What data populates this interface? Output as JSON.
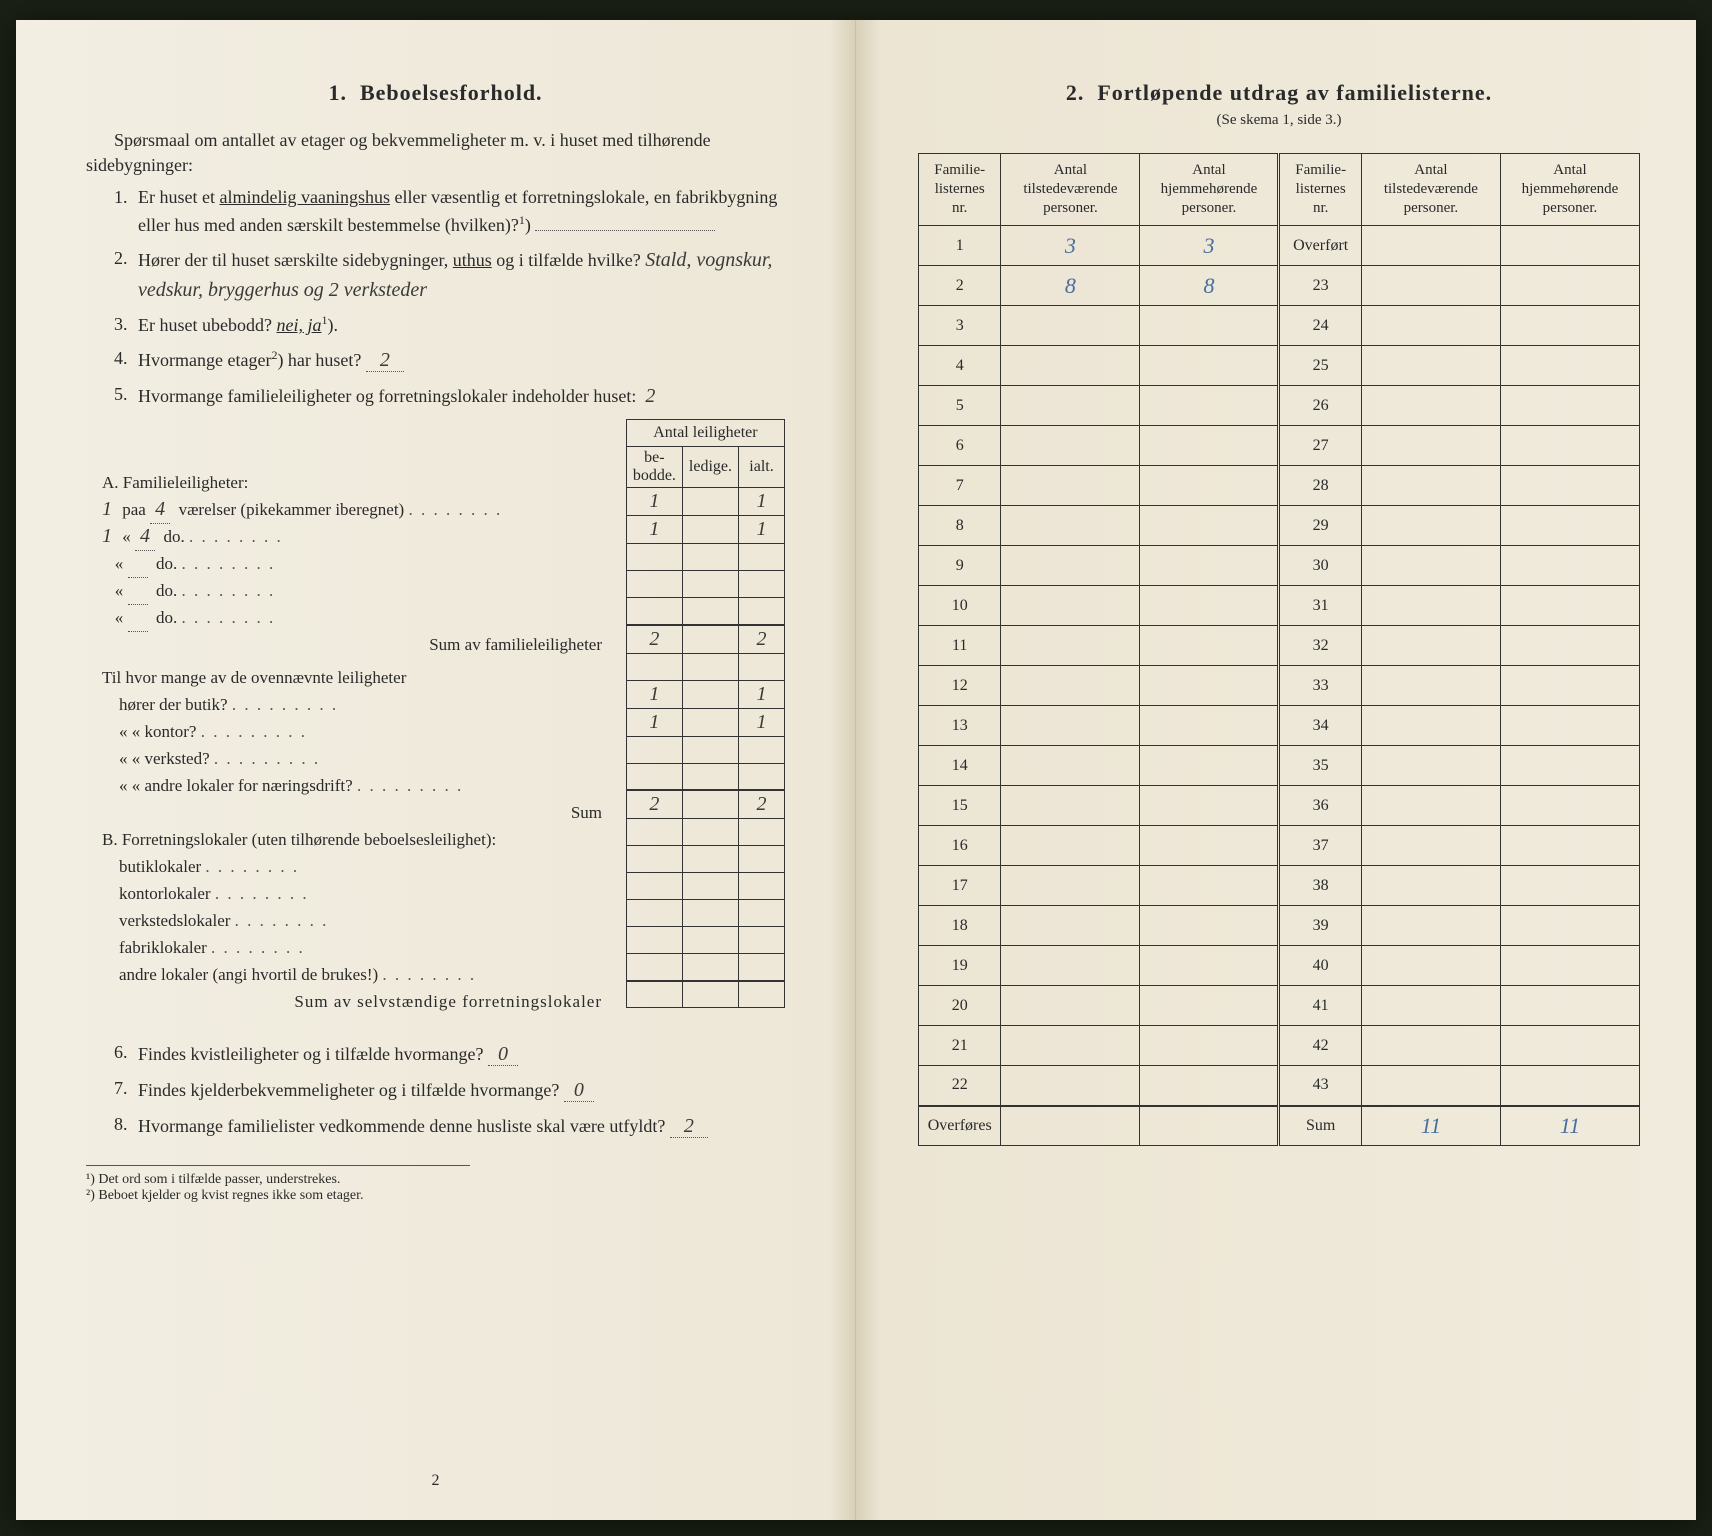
{
  "colors": {
    "page_bg": "#f0ece0",
    "text": "#2a2a2a",
    "rule": "#333333",
    "handwriting": "#3a3a38",
    "blue_pencil": "#4a6f9e",
    "outer_bg": "#1a2015"
  },
  "left": {
    "section_num": "1.",
    "section_title": "Beboelsesforhold.",
    "intro": "Spørsmaal om antallet av etager og bekvemmeligheter m. v. i huset med tilhørende sidebygninger:",
    "q1": {
      "num": "1.",
      "text_a": "Er huset et ",
      "underlined": "almindelig vaaningshus",
      "text_b": " eller væsentlig et forretningslokale, en fabrikbygning eller hus med anden særskilt bestemmelse (hvilken)?",
      "sup": "1"
    },
    "q2": {
      "num": "2.",
      "text_a": "Hører der til huset særskilte sidebygninger, ",
      "underlined": "uthus",
      "text_b": " og i tilfælde hvilke?",
      "answer": "Stald, vognskur, vedskur, bryggerhus og 2 verksteder"
    },
    "q3": {
      "num": "3.",
      "text": "Er huset ubebodd?",
      "italic": "nei, ja",
      "sup": "1",
      "close": ")."
    },
    "q4": {
      "num": "4.",
      "text": "Hvormange etager",
      "sup": "2",
      "close": ") har huset?",
      "answer": "2"
    },
    "q5": {
      "num": "5.",
      "text": "Hvormange familieleiligheter og forretningslokaler indeholder huset:",
      "answer": "2"
    },
    "leil_table": {
      "header_top": "Antal leiligheter",
      "headers": [
        "be-\nbodde.",
        "ledige.",
        "ialt."
      ],
      "sectionA_title": "A. Familieleiligheter:",
      "rowsA": [
        {
          "lead": "1",
          "label": "paa",
          "val": "4",
          "rest": "værelser (pikekammer iberegnet)",
          "cells": [
            "1",
            "",
            "1"
          ]
        },
        {
          "lead": "1",
          "label": "«",
          "val": "4",
          "rest": "do.",
          "cells": [
            "1",
            "",
            "1"
          ]
        },
        {
          "lead": "",
          "label": "«",
          "val": "",
          "rest": "do.",
          "cells": [
            "",
            "",
            ""
          ]
        },
        {
          "lead": "",
          "label": "«",
          "val": "",
          "rest": "do.",
          "cells": [
            "",
            "",
            ""
          ]
        },
        {
          "lead": "",
          "label": "«",
          "val": "",
          "rest": "do.",
          "cells": [
            "",
            "",
            ""
          ]
        }
      ],
      "sumA_label": "Sum av familieleiligheter",
      "sumA": [
        "2",
        "",
        "2"
      ],
      "between_title": "Til hvor mange av de ovennævnte leiligheter",
      "rowsB": [
        {
          "label": "hører der butik?",
          "cells": [
            "1",
            "",
            "1"
          ]
        },
        {
          "label": "«     «   kontor?",
          "cells": [
            "1",
            "",
            "1"
          ]
        },
        {
          "label": "«     «   verksted?",
          "cells": [
            "",
            "",
            ""
          ]
        },
        {
          "label": "«     «   andre lokaler for næringsdrift?",
          "cells": [
            "",
            "",
            ""
          ]
        }
      ],
      "sumB_label": "Sum",
      "sumB": [
        "2",
        "",
        "2"
      ],
      "sectionB_title": "B. Forretningslokaler (uten tilhørende beboelsesleilighet):",
      "rowsC": [
        {
          "label": "butiklokaler",
          "cells": [
            "",
            "",
            ""
          ]
        },
        {
          "label": "kontorlokaler",
          "cells": [
            "",
            "",
            ""
          ]
        },
        {
          "label": "verkstedslokaler",
          "cells": [
            "",
            "",
            ""
          ]
        },
        {
          "label": "fabriklokaler",
          "cells": [
            "",
            "",
            ""
          ]
        },
        {
          "label": "andre lokaler (angi hvortil de brukes!)",
          "cells": [
            "",
            "",
            ""
          ]
        }
      ],
      "sumC_label": "Sum av selvstændige forretningslokaler",
      "sumC": [
        "",
        "",
        ""
      ]
    },
    "q6": {
      "num": "6.",
      "text": "Findes kvistleiligheter og i tilfælde hvormange?",
      "answer": "0"
    },
    "q7": {
      "num": "7.",
      "text": "Findes kjelderbekvemmeligheter og i tilfælde hvormange?",
      "answer": "0"
    },
    "q8": {
      "num": "8.",
      "text": "Hvormange familielister vedkommende denne husliste skal være utfyldt?",
      "answer": "2"
    },
    "footnote1": "¹) Det ord som i tilfælde passer, understrekes.",
    "footnote2": "²) Beboet kjelder og kvist regnes ikke som etager.",
    "pagenum": "2"
  },
  "right": {
    "section_num": "2.",
    "section_title": "Fortløpende utdrag av familielisterne.",
    "subtext": "(Se skema 1, side 3.)",
    "headers": [
      "Familie-\nlisternes\nnr.",
      "Antal\ntilstedeværende\npersoner.",
      "Antal\nhjemmehørende\npersoner.",
      "Familie-\nlisternes\nnr.",
      "Antal\ntilstedeværende\npersoner.",
      "Antal\nhjemmehørende\npersoner."
    ],
    "rows": [
      [
        "1",
        "3",
        "3",
        "Overført",
        "",
        ""
      ],
      [
        "2",
        "8",
        "8",
        "23",
        "",
        ""
      ],
      [
        "3",
        "",
        "",
        "24",
        "",
        ""
      ],
      [
        "4",
        "",
        "",
        "25",
        "",
        ""
      ],
      [
        "5",
        "",
        "",
        "26",
        "",
        ""
      ],
      [
        "6",
        "",
        "",
        "27",
        "",
        ""
      ],
      [
        "7",
        "",
        "",
        "28",
        "",
        ""
      ],
      [
        "8",
        "",
        "",
        "29",
        "",
        ""
      ],
      [
        "9",
        "",
        "",
        "30",
        "",
        ""
      ],
      [
        "10",
        "",
        "",
        "31",
        "",
        ""
      ],
      [
        "11",
        "",
        "",
        "32",
        "",
        ""
      ],
      [
        "12",
        "",
        "",
        "33",
        "",
        ""
      ],
      [
        "13",
        "",
        "",
        "34",
        "",
        ""
      ],
      [
        "14",
        "",
        "",
        "35",
        "",
        ""
      ],
      [
        "15",
        "",
        "",
        "36",
        "",
        ""
      ],
      [
        "16",
        "",
        "",
        "37",
        "",
        ""
      ],
      [
        "17",
        "",
        "",
        "38",
        "",
        ""
      ],
      [
        "18",
        "",
        "",
        "39",
        "",
        ""
      ],
      [
        "19",
        "",
        "",
        "40",
        "",
        ""
      ],
      [
        "20",
        "",
        "",
        "41",
        "",
        ""
      ],
      [
        "21",
        "",
        "",
        "42",
        "",
        ""
      ],
      [
        "22",
        "",
        "",
        "43",
        "",
        ""
      ],
      [
        "Overføres",
        "",
        "",
        "Sum",
        "11",
        "11"
      ]
    ]
  }
}
